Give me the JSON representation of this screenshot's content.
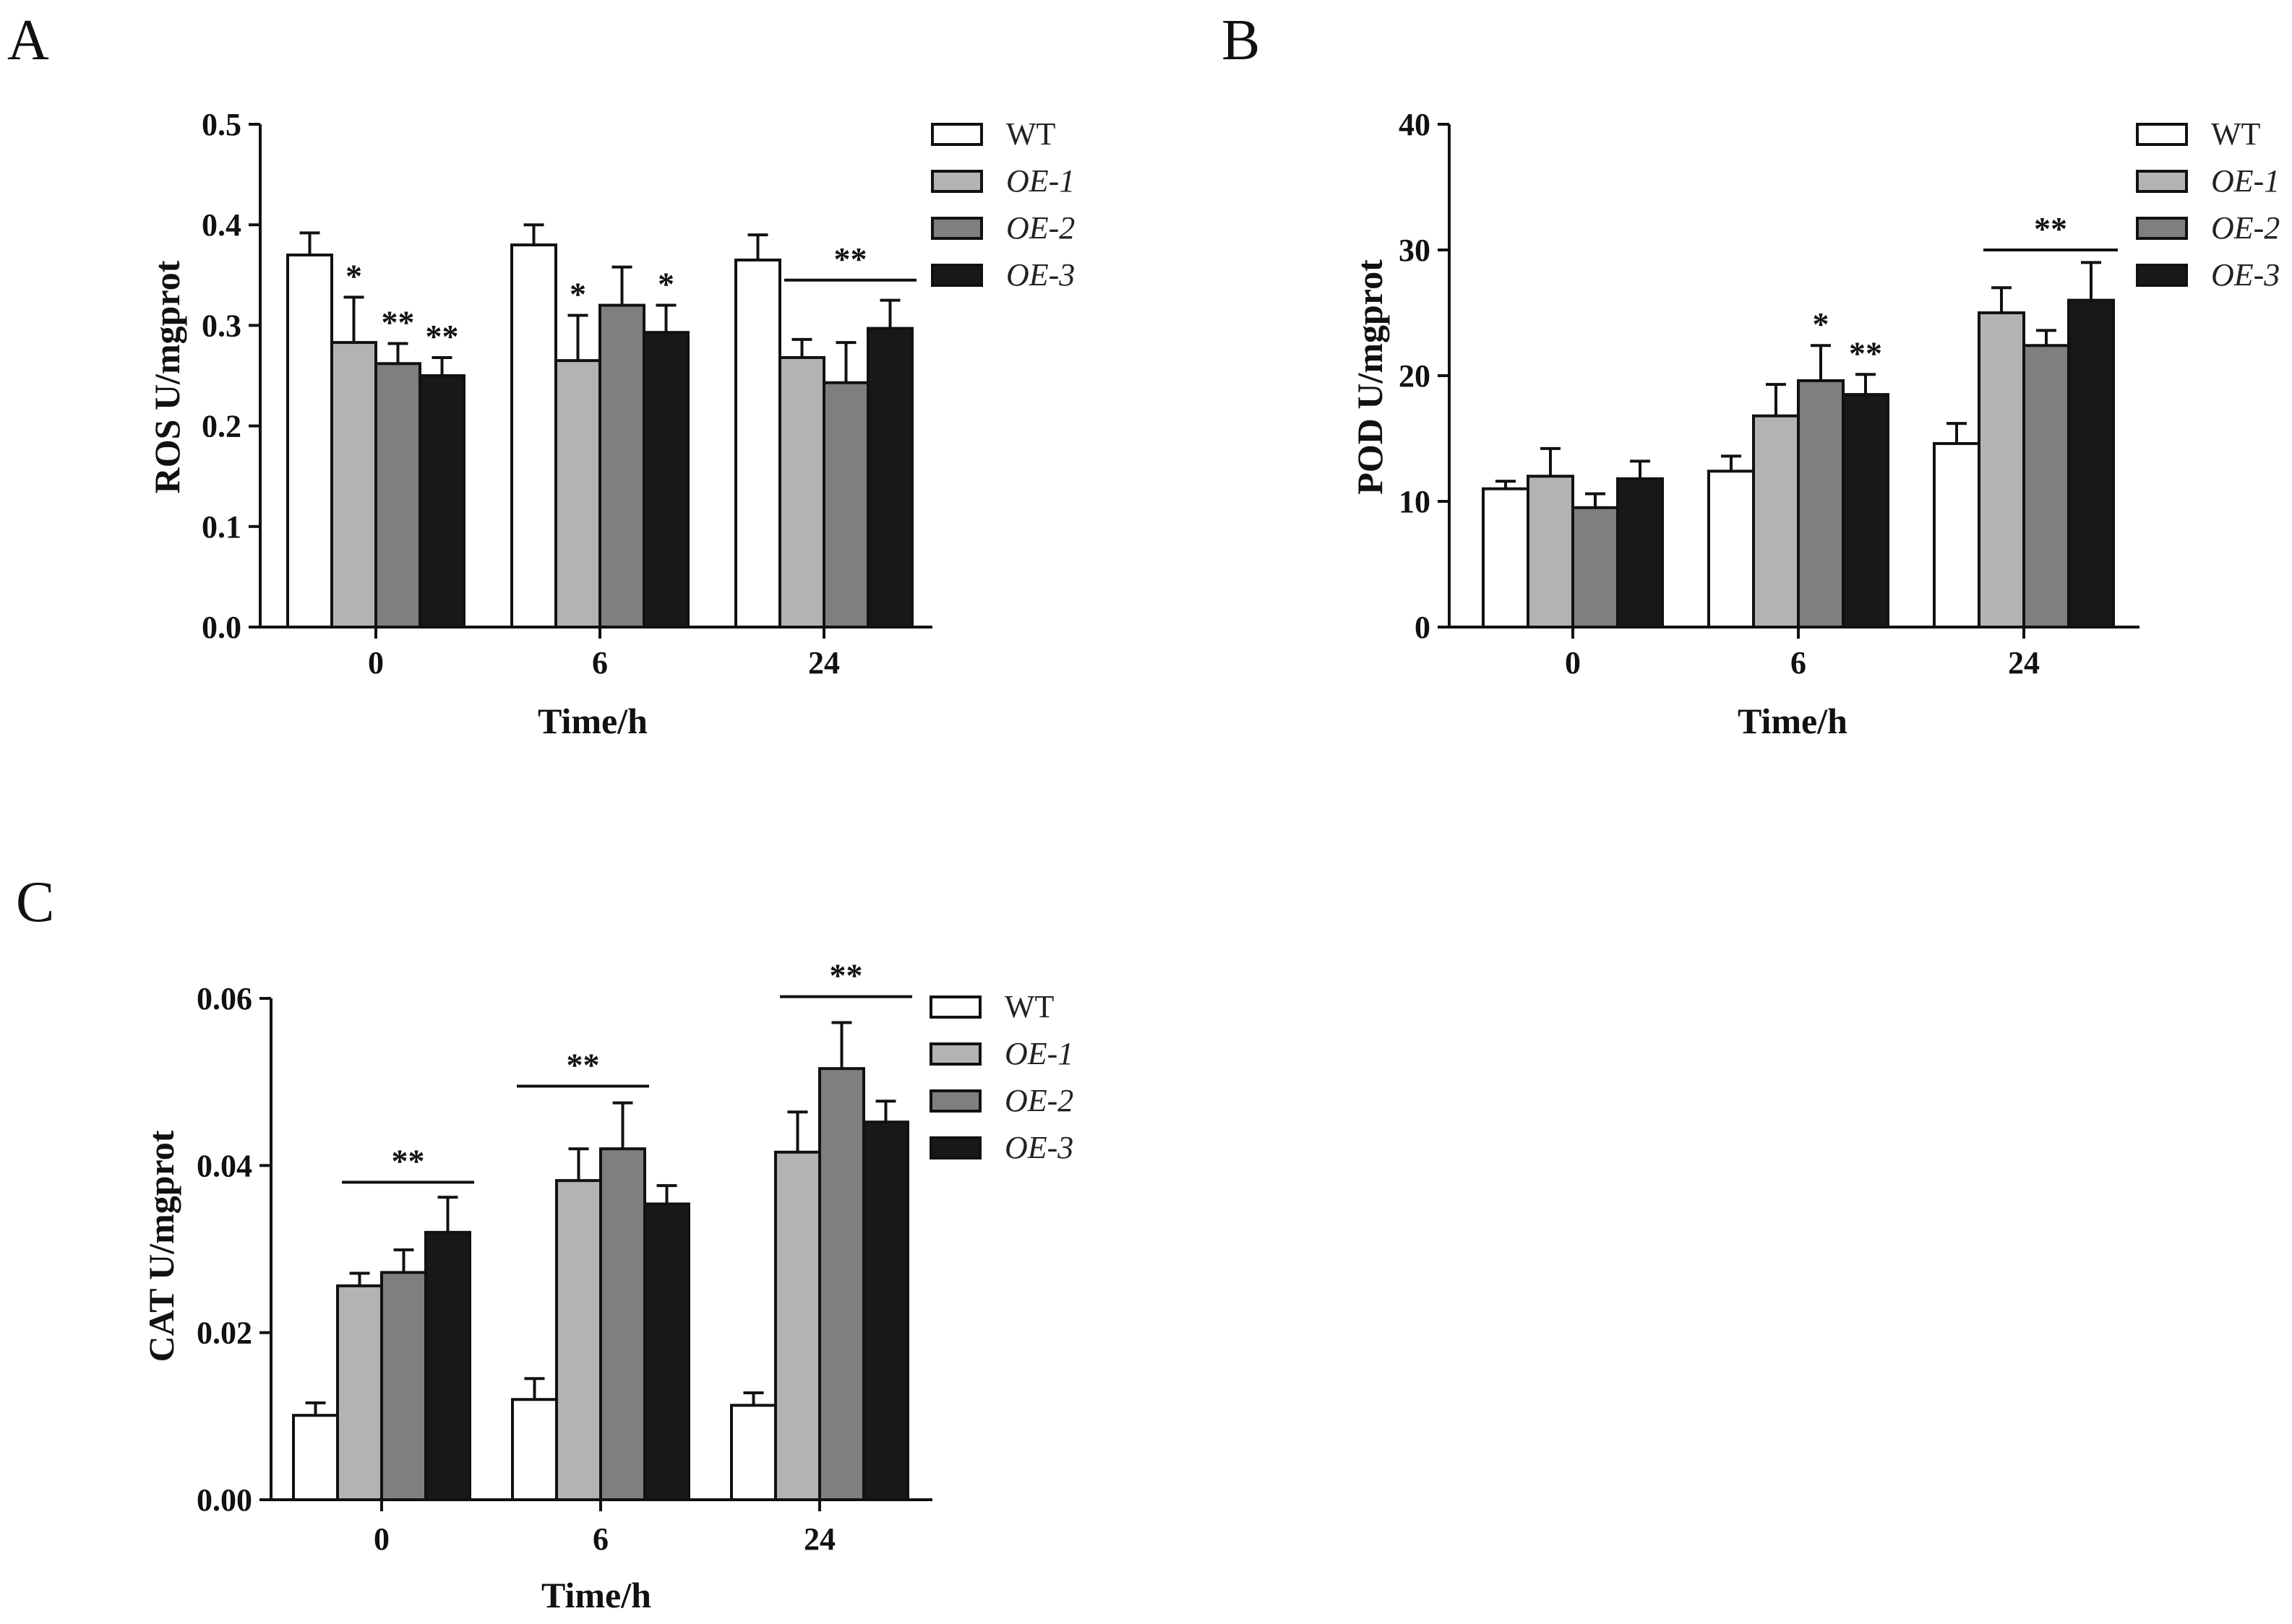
{
  "series_styles": [
    {
      "name": "WT",
      "color": "#ffffff",
      "italic": false
    },
    {
      "name": "OE-1",
      "color": "#b3b3b3",
      "italic": true
    },
    {
      "name": "OE-2",
      "color": "#7f7f7f",
      "italic": true
    },
    {
      "name": "OE-3",
      "color": "#181818",
      "italic": true
    }
  ],
  "chart_data": [
    {
      "panel": "A",
      "type": "bar",
      "xlabel": "Time/h",
      "ylabel": "ROS U/mgprot",
      "categories": [
        "0",
        "6",
        "24"
      ],
      "ylim": [
        0,
        0.5
      ],
      "yticks": [
        "0.0",
        "0.1",
        "0.2",
        "0.3",
        "0.4",
        "0.5"
      ],
      "tick_values": [
        0,
        0.1,
        0.2,
        0.3,
        0.4,
        0.5
      ],
      "legend_position": "top-right",
      "series": [
        {
          "name": "WT",
          "values": [
            0.37,
            0.38,
            0.365
          ],
          "errors": [
            0.022,
            0.02,
            0.025
          ]
        },
        {
          "name": "OE-1",
          "values": [
            0.283,
            0.265,
            0.268
          ],
          "errors": [
            0.045,
            0.045,
            0.018
          ]
        },
        {
          "name": "OE-2",
          "values": [
            0.262,
            0.32,
            0.243
          ],
          "errors": [
            0.02,
            0.038,
            0.04
          ]
        },
        {
          "name": "OE-3",
          "values": [
            0.25,
            0.293,
            0.297
          ],
          "errors": [
            0.018,
            0.027,
            0.028
          ]
        }
      ],
      "annotations": [
        {
          "text": "*",
          "category": 0,
          "series": 1
        },
        {
          "text": "**",
          "category": 0,
          "series": 2
        },
        {
          "text": "**",
          "category": 0,
          "series": 3
        },
        {
          "text": "*",
          "category": 1,
          "series": 1
        },
        {
          "text": "*",
          "category": 1,
          "series": 3
        }
      ],
      "brackets": [
        {
          "text": "**",
          "category": 2,
          "from_series": 1,
          "to_series": 3,
          "y": 0.345
        }
      ]
    },
    {
      "panel": "B",
      "type": "bar",
      "xlabel": "Time/h",
      "ylabel": "POD U/mgprot",
      "categories": [
        "0",
        "6",
        "24"
      ],
      "ylim": [
        0,
        40
      ],
      "yticks": [
        "0",
        "10",
        "20",
        "30",
        "40"
      ],
      "tick_values": [
        0,
        10,
        20,
        30,
        40
      ],
      "legend_position": "top-right",
      "series": [
        {
          "name": "WT",
          "values": [
            11.0,
            12.4,
            14.6
          ],
          "errors": [
            0.6,
            1.2,
            1.6
          ]
        },
        {
          "name": "OE-1",
          "values": [
            12.0,
            16.8,
            25.0
          ],
          "errors": [
            2.2,
            2.5,
            2.0
          ]
        },
        {
          "name": "OE-2",
          "values": [
            9.5,
            19.6,
            22.4
          ],
          "errors": [
            1.1,
            2.8,
            1.2
          ]
        },
        {
          "name": "OE-3",
          "values": [
            11.8,
            18.5,
            26.0
          ],
          "errors": [
            1.4,
            1.6,
            3.0
          ]
        }
      ],
      "annotations": [
        {
          "text": "*",
          "category": 1,
          "series": 2
        },
        {
          "text": "**",
          "category": 1,
          "series": 3
        }
      ],
      "brackets": [
        {
          "text": "**",
          "category": 2,
          "from_series": 1,
          "to_series": 3,
          "y": 30.0
        }
      ]
    },
    {
      "panel": "C",
      "type": "bar",
      "xlabel": "Time/h",
      "ylabel": "CAT U/mgprot",
      "categories": [
        "0",
        "6",
        "24"
      ],
      "ylim": [
        0,
        0.06
      ],
      "yticks": [
        "0.00",
        "0.02",
        "0.04",
        "0.06"
      ],
      "tick_values": [
        0,
        0.02,
        0.04,
        0.06
      ],
      "legend_position": "top-right",
      "series": [
        {
          "name": "WT",
          "values": [
            0.0101,
            0.012,
            0.0113
          ],
          "errors": [
            0.0015,
            0.0025,
            0.0015
          ]
        },
        {
          "name": "OE-1",
          "values": [
            0.0256,
            0.0382,
            0.0416
          ],
          "errors": [
            0.0015,
            0.0038,
            0.0048
          ]
        },
        {
          "name": "OE-2",
          "values": [
            0.0272,
            0.042,
            0.0516
          ],
          "errors": [
            0.0027,
            0.0055,
            0.0055
          ]
        },
        {
          "name": "OE-3",
          "values": [
            0.032,
            0.0354,
            0.0452
          ],
          "errors": [
            0.0042,
            0.0022,
            0.0025
          ]
        }
      ],
      "annotations": [],
      "brackets": [
        {
          "text": "**",
          "category": 0,
          "from_series": 1,
          "to_series": 3,
          "y": 0.038
        },
        {
          "text": "**",
          "category": 1,
          "from_series": 0,
          "to_series": 2,
          "y": 0.0495
        },
        {
          "text": "**",
          "category": 2,
          "from_series": 1,
          "to_series": 3,
          "y": 0.0602
        }
      ]
    }
  ]
}
